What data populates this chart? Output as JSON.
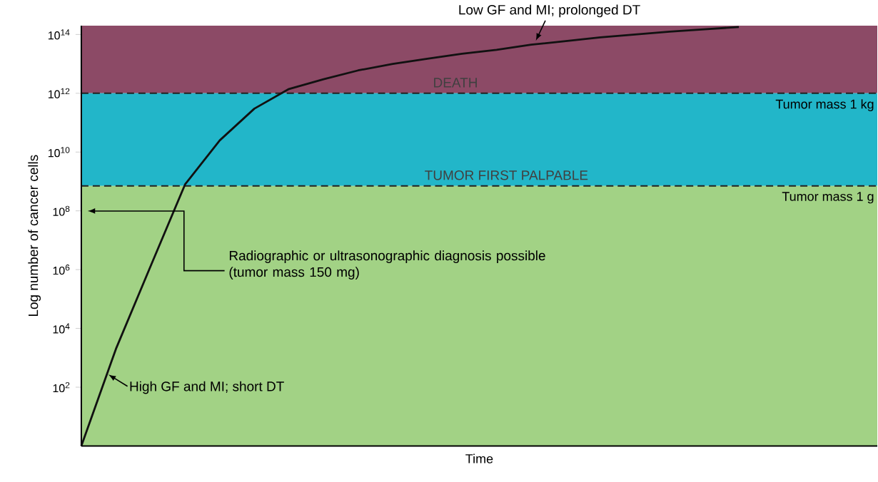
{
  "chart_data": {
    "type": "line",
    "xlabel": "Time",
    "ylabel": "Log number of cancer cells",
    "categories": [
      null,
      null,
      null,
      null,
      null,
      null,
      null,
      null,
      null,
      null,
      null,
      null,
      null,
      null,
      null,
      null,
      null,
      null,
      null,
      null,
      null,
      null,
      null,
      null
    ],
    "series": [
      {
        "color": "#111111",
        "values": [
          1,
          2000.0,
          1300000.0,
          800000000.0,
          25000000000.0,
          300000000000.0,
          1400000000000.0,
          3000000000000.0,
          6000000000000.0,
          10000000000000.0,
          15000000000000.0,
          22000000000000.0,
          30000000000000.0,
          45000000000000.0,
          60000000000000.0,
          80000000000000.0,
          100000000000000.0,
          125000000000000.0,
          150000000000000.0,
          180000000000000.0,
          null,
          null,
          null,
          null
        ]
      }
    ],
    "log": "y",
    "ylim": [
      1,
      200000000000000.0
    ],
    "yticks": [
      {
        "value": 100,
        "label": "10$^{2}$"
      },
      {
        "value": 10000.0,
        "label": "10$^{4}$"
      },
      {
        "value": 1000000.0,
        "label": "10$^{6}$"
      },
      {
        "value": 100000000.0,
        "label": "10$^{8}$"
      },
      {
        "value": 10000000000.0,
        "label": "10$^{10}$"
      },
      {
        "value": 1000000000000.0,
        "label": "10$^{12}$"
      },
      {
        "value": 100000000000000.0,
        "label": "10$^{14}$"
      }
    ],
    "tick_labels": "y",
    "grid": false,
    "marker": "none",
    "line_style": "solid",
    "bands": [
      {
        "axis": "y",
        "from": 1000000000000.0,
        "to": 200000000000000.0,
        "label": "DEATH",
        "color": "#8c4a66"
      },
      {
        "axis": "y",
        "from": 700000000.0,
        "to": 1000000000000.0,
        "label": "TUMOR FIRST PALPABLE",
        "color": "#22b6c9"
      },
      {
        "axis": "y",
        "from": 1,
        "to": 700000000.0,
        "color": "#a2d285"
      }
    ],
    "ref_lines": [
      {
        "axis": "y",
        "value": 1000000000000.0,
        "label": "Tumor mass 1 kg",
        "line_style": "dashed",
        "color": "#222222"
      },
      {
        "axis": "y",
        "value": 700000000.0,
        "label": "Tumor mass 1 g",
        "line_style": "dashed",
        "color": "#222222"
      }
    ],
    "annotations": [
      "Low GF and MI; prolonged DT",
      "Radiographic or ultrasonographic diagnosis possible (tumor mass 150 mg)",
      "High GF and MI; short DT"
    ]
  }
}
